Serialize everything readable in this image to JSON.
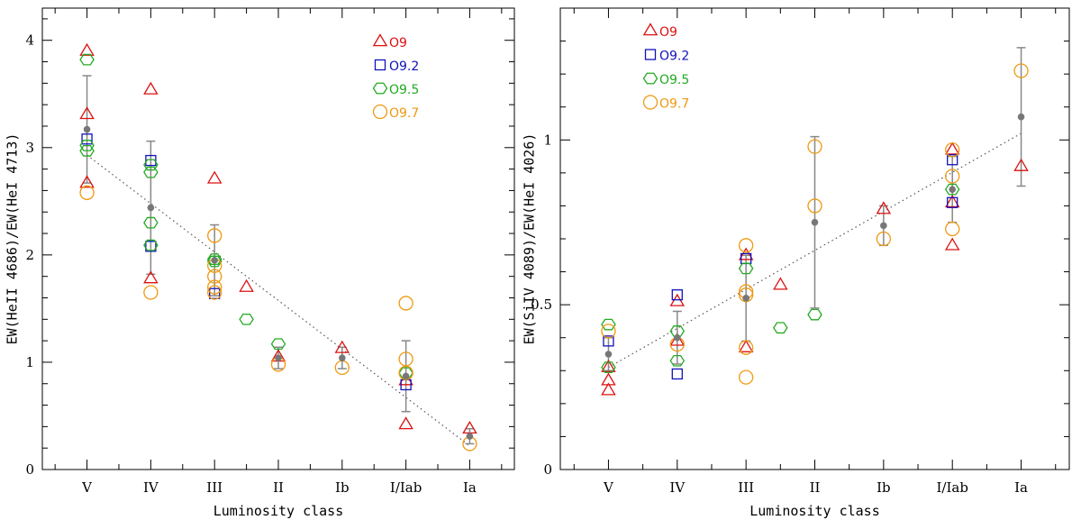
{
  "chart_data": [
    {
      "type": "scatter",
      "title": "",
      "xlabel": "Luminosity class",
      "ylabel": "EW(HeII 4686)/EW(HeI 4713)",
      "categories": [
        "V",
        "IV",
        "III",
        "II",
        "Ib",
        "I/Iab",
        "Ia"
      ],
      "xlim": [
        -0.7,
        6.7
      ],
      "ylim": [
        0,
        4.3
      ],
      "yticks_major": [
        0,
        1,
        2,
        3,
        4
      ],
      "yticks_minor": [
        0.2,
        0.4,
        0.6,
        0.8,
        1.2,
        1.4,
        1.6,
        1.8,
        2.2,
        2.4,
        2.6,
        2.8,
        3.2,
        3.4,
        3.6,
        3.8,
        4.2
      ],
      "legend_position": "top-right",
      "series": [
        {
          "name": "O9",
          "marker": "triangle",
          "color": "#dd1111",
          "points": [
            [
              0,
              3.9
            ],
            [
              0,
              3.31
            ],
            [
              0,
              2.67
            ],
            [
              1,
              3.54
            ],
            [
              1,
              1.78
            ],
            [
              2,
              2.71
            ],
            [
              2.5,
              1.7
            ],
            [
              3,
              1.05
            ],
            [
              4,
              1.13
            ],
            [
              5,
              0.83
            ],
            [
              5,
              0.42
            ],
            [
              6,
              0.38
            ]
          ]
        },
        {
          "name": "O9.2",
          "marker": "square",
          "color": "#1111bb",
          "points": [
            [
              0,
              3.08
            ],
            [
              1,
              2.88
            ],
            [
              1,
              2.08
            ],
            [
              2,
              1.64
            ],
            [
              5,
              0.79
            ]
          ]
        },
        {
          "name": "O9.5",
          "marker": "hexagon",
          "color": "#22aa22",
          "points": [
            [
              0,
              3.82
            ],
            [
              0,
              3.02
            ],
            [
              0,
              2.97
            ],
            [
              1,
              2.84
            ],
            [
              1,
              2.77
            ],
            [
              1,
              2.3
            ],
            [
              1,
              2.09
            ],
            [
              2,
              1.96
            ],
            [
              2,
              1.94
            ],
            [
              2.5,
              1.4
            ],
            [
              3,
              1.17
            ],
            [
              5,
              0.9
            ]
          ]
        },
        {
          "name": "O9.7",
          "marker": "circle",
          "color": "#ee9911",
          "points": [
            [
              0,
              2.58
            ],
            [
              1,
              1.65
            ],
            [
              2,
              2.18
            ],
            [
              2,
              1.9
            ],
            [
              2,
              1.8
            ],
            [
              2,
              1.7
            ],
            [
              2,
              1.65
            ],
            [
              3,
              0.98
            ],
            [
              4,
              0.95
            ],
            [
              5,
              1.55
            ],
            [
              5,
              1.03
            ],
            [
              5,
              0.9
            ],
            [
              6,
              0.24
            ]
          ]
        },
        {
          "name": "mean",
          "marker": "dot",
          "color": "#777777",
          "points": [
            [
              0,
              3.17
            ],
            [
              1,
              2.44
            ],
            [
              2,
              1.95
            ],
            [
              3,
              1.04
            ],
            [
              4,
              1.04
            ],
            [
              5,
              0.87
            ],
            [
              6,
              0.31
            ]
          ],
          "errors": [
            0.5,
            0.62,
            0.33,
            0.1,
            0.1,
            0.33,
            0.07
          ]
        }
      ],
      "fit_line": {
        "x": [
          0,
          6
        ],
        "y": [
          2.93,
          0.22
        ]
      }
    },
    {
      "type": "scatter",
      "title": "",
      "xlabel": "Luminosity class",
      "ylabel": "EW(SiIV 4089)/EW(HeI 4026)",
      "categories": [
        "V",
        "IV",
        "III",
        "II",
        "Ib",
        "I/Iab",
        "Ia"
      ],
      "xlim": [
        -0.7,
        6.7
      ],
      "ylim": [
        0,
        1.4
      ],
      "yticks_major": [
        0,
        0.5,
        1
      ],
      "yticks_major_labels": [
        "0",
        "0.5",
        "1"
      ],
      "yticks_minor": [
        0.1,
        0.2,
        0.3,
        0.4,
        0.6,
        0.7,
        0.8,
        0.9,
        1.1,
        1.2,
        1.3
      ],
      "legend_position": "top-left",
      "series": [
        {
          "name": "O9",
          "marker": "triangle",
          "color": "#dd1111",
          "points": [
            [
              0,
              0.31
            ],
            [
              0,
              0.27
            ],
            [
              0,
              0.24
            ],
            [
              1,
              0.51
            ],
            [
              1,
              0.39
            ],
            [
              2,
              0.65
            ],
            [
              2,
              0.37
            ],
            [
              2.5,
              0.56
            ],
            [
              4,
              0.79
            ],
            [
              5,
              0.97
            ],
            [
              5,
              0.81
            ],
            [
              5,
              0.68
            ],
            [
              6,
              0.92
            ]
          ]
        },
        {
          "name": "O9.2",
          "marker": "square",
          "color": "#1111bb",
          "points": [
            [
              0,
              0.39
            ],
            [
              1,
              0.53
            ],
            [
              1,
              0.29
            ],
            [
              2,
              0.64
            ],
            [
              5,
              0.94
            ],
            [
              5,
              0.81
            ]
          ]
        },
        {
          "name": "O9.5",
          "marker": "hexagon",
          "color": "#22aa22",
          "points": [
            [
              0,
              0.44
            ],
            [
              0,
              0.31
            ],
            [
              1,
              0.42
            ],
            [
              1,
              0.33
            ],
            [
              2,
              0.61
            ],
            [
              2.5,
              0.43
            ],
            [
              3,
              0.47
            ],
            [
              5,
              0.85
            ]
          ]
        },
        {
          "name": "O9.7",
          "marker": "circle",
          "color": "#ee9911",
          "points": [
            [
              0,
              0.42
            ],
            [
              1,
              0.38
            ],
            [
              2,
              0.68
            ],
            [
              2,
              0.54
            ],
            [
              2,
              0.53
            ],
            [
              2,
              0.37
            ],
            [
              2,
              0.28
            ],
            [
              3,
              0.98
            ],
            [
              3,
              0.8
            ],
            [
              4,
              0.7
            ],
            [
              5,
              0.97
            ],
            [
              5,
              0.89
            ],
            [
              5,
              0.73
            ],
            [
              6,
              1.21
            ]
          ]
        },
        {
          "name": "mean",
          "marker": "dot",
          "color": "#777777",
          "points": [
            [
              0,
              0.35
            ],
            [
              1,
              0.4
            ],
            [
              2,
              0.52
            ],
            [
              3,
              0.75
            ],
            [
              4,
              0.74
            ],
            [
              5,
              0.85
            ],
            [
              6,
              1.07
            ]
          ],
          "errors": [
            0.05,
            0.08,
            0.13,
            0.26,
            0.06,
            0.1,
            0.21
          ]
        }
      ],
      "fit_line": {
        "x": [
          0,
          6
        ],
        "y": [
          0.31,
          1.02
        ]
      }
    }
  ]
}
